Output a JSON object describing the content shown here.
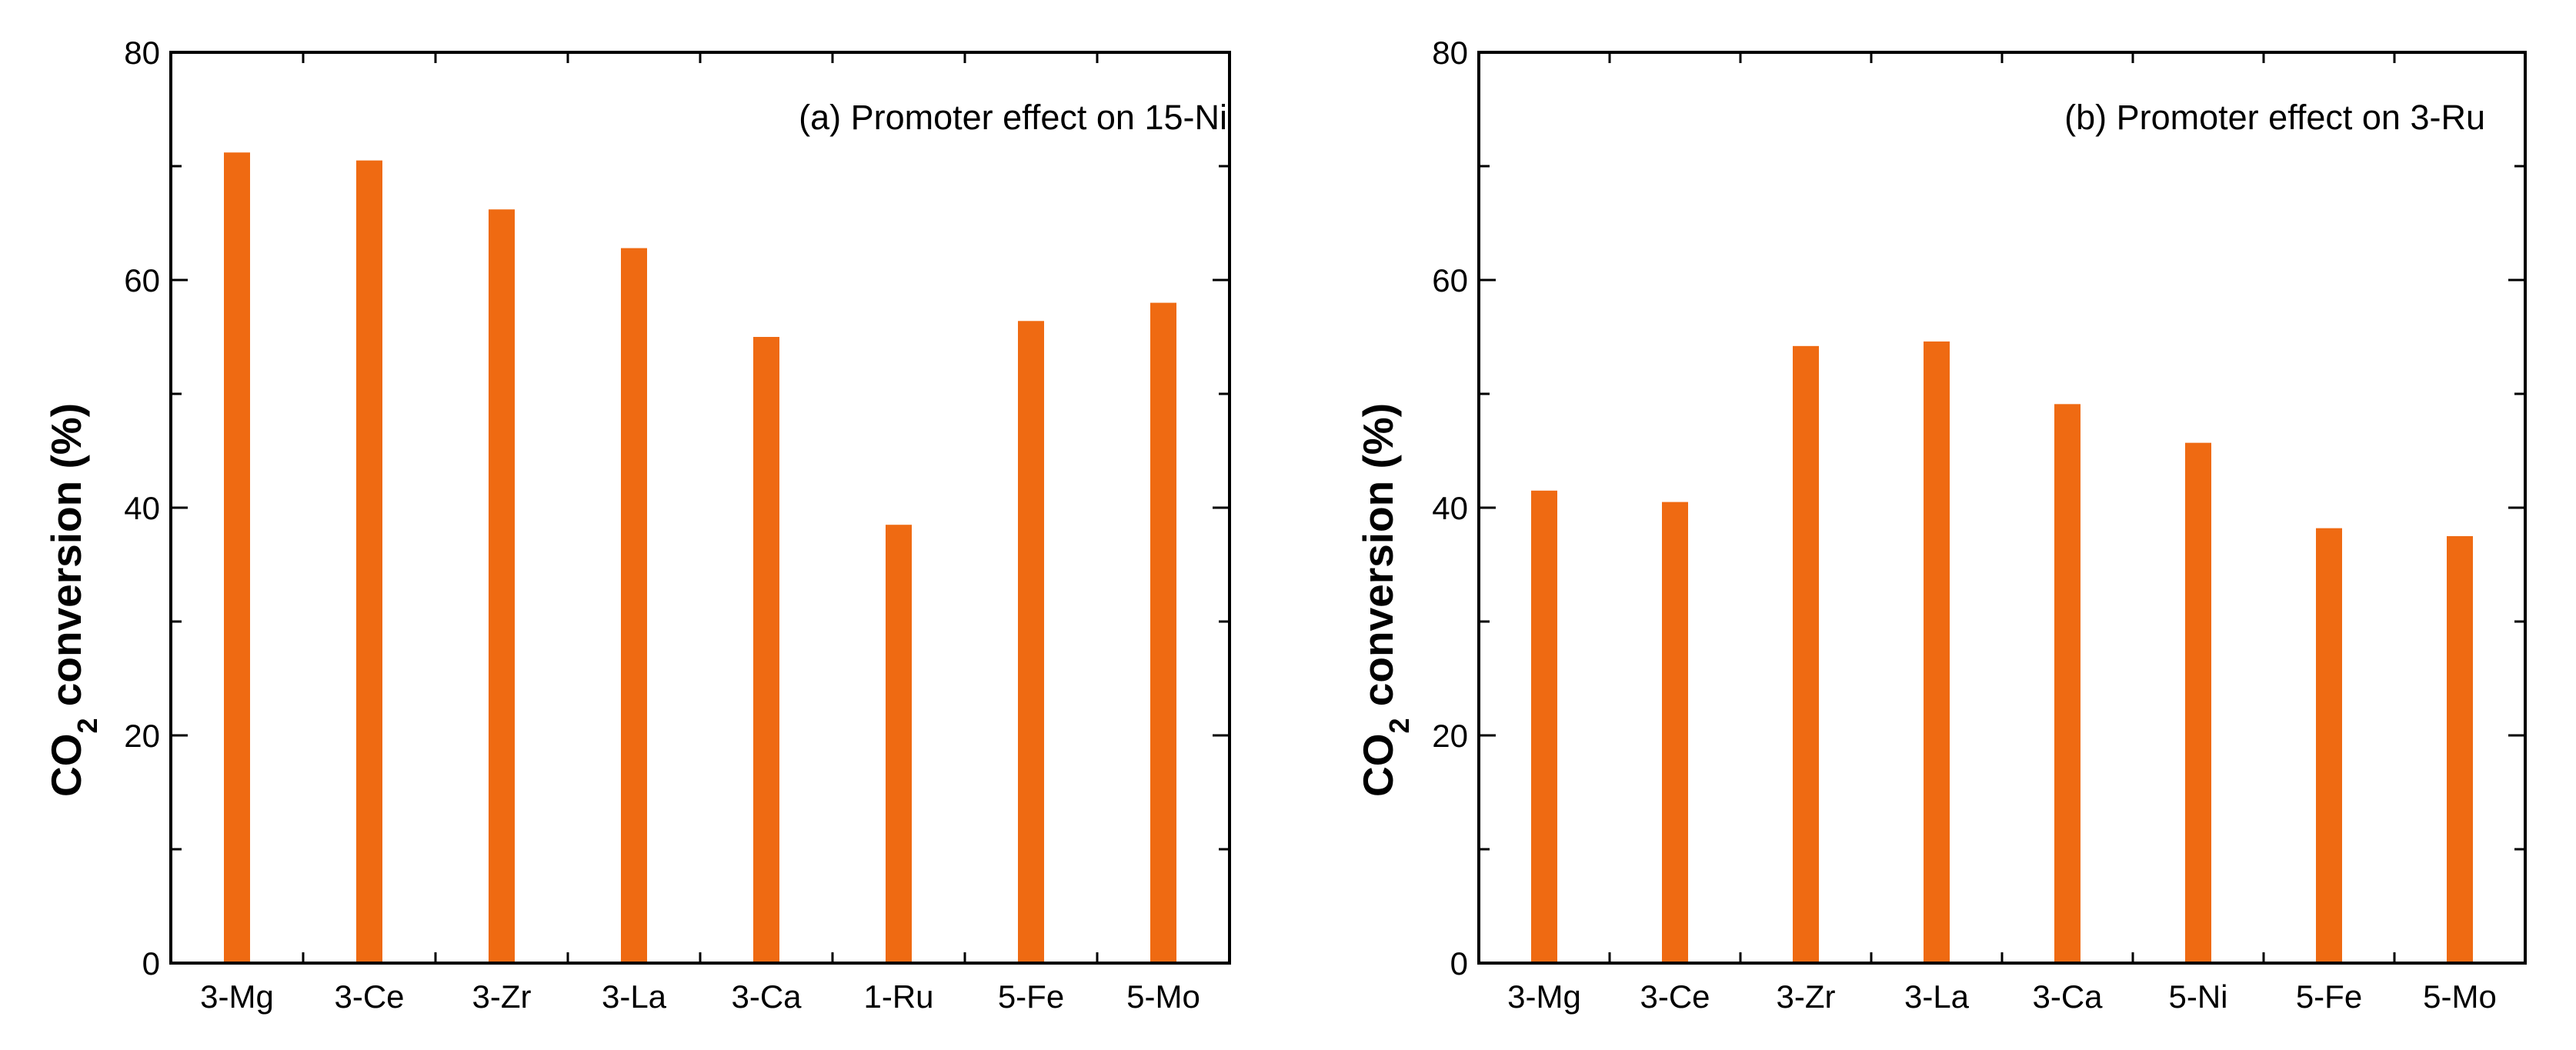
{
  "colors": {
    "bar": "#EF6A12",
    "axis": "#000000"
  },
  "chart_data": [
    {
      "type": "bar",
      "title": "(a) Promoter effect on 15-Ni",
      "ylabel_parts": [
        "CO",
        "2",
        " conversion (%)"
      ],
      "categories": [
        "3-Mg",
        "3-Ce",
        "3-Zr",
        "3-La",
        "3-Ca",
        "1-Ru",
        "5-Fe",
        "5-Mo"
      ],
      "values": [
        71.2,
        70.5,
        66.2,
        62.8,
        55.0,
        38.5,
        56.4,
        58.0
      ],
      "ylim": [
        0,
        80
      ],
      "yticks": [
        0,
        20,
        40,
        60,
        80
      ],
      "yminor_step": 10,
      "grid": false,
      "legend": "none"
    },
    {
      "type": "bar",
      "title": "(b) Promoter effect on 3-Ru",
      "ylabel_parts": [
        "CO",
        "2",
        " conversion (%)"
      ],
      "categories": [
        "3-Mg",
        "3-Ce",
        "3-Zr",
        "3-La",
        "3-Ca",
        "5-Ni",
        "5-Fe",
        "5-Mo"
      ],
      "values": [
        41.5,
        40.5,
        54.2,
        54.6,
        49.1,
        45.7,
        38.2,
        37.5
      ],
      "ylim": [
        0,
        80
      ],
      "yticks": [
        0,
        20,
        40,
        60,
        80
      ],
      "yminor_step": 10,
      "grid": false,
      "legend": "none"
    }
  ]
}
